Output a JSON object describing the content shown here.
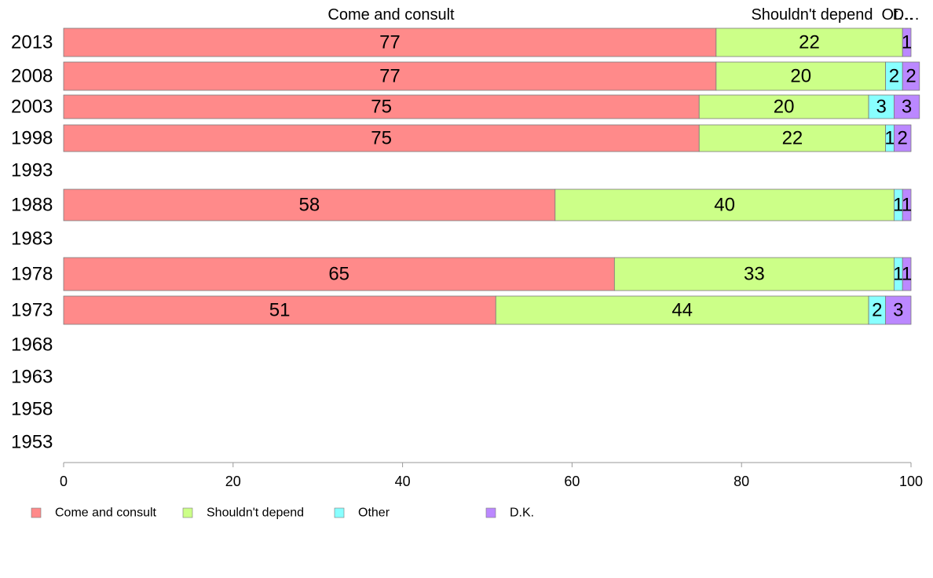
{
  "chart_data": {
    "type": "bar",
    "orientation": "horizontal",
    "stacked": true,
    "categories": [
      "2013",
      "2008",
      "2003",
      "1998",
      "1993",
      "1988",
      "1983",
      "1978",
      "1973",
      "1968",
      "1963",
      "1958",
      "1953"
    ],
    "series": [
      {
        "name": "Come and consult",
        "color": "#ff8a8a",
        "values": [
          77,
          77,
          75,
          75,
          null,
          58,
          null,
          65,
          51,
          null,
          null,
          null,
          null
        ]
      },
      {
        "name": "Shouldn't depend",
        "color": "#ccff88",
        "values": [
          22,
          20,
          20,
          22,
          null,
          40,
          null,
          33,
          44,
          null,
          null,
          null,
          null
        ]
      },
      {
        "name": "Other",
        "color": "#88ffff",
        "values": [
          0,
          2,
          3,
          1,
          null,
          1,
          null,
          1,
          2,
          null,
          null,
          null,
          null
        ]
      },
      {
        "name": "D.K.",
        "color": "#bb88ff",
        "values": [
          1,
          2,
          3,
          2,
          null,
          1,
          null,
          1,
          3,
          null,
          null,
          null,
          null
        ]
      }
    ],
    "top_labels": [
      "Come and consult",
      "Shouldn't depend",
      "Ot…",
      "D…"
    ],
    "xlim": [
      0,
      100
    ],
    "xticks": [
      "0",
      "20",
      "40",
      "60",
      "80",
      "100"
    ],
    "grid": false,
    "legend_position": "bottom-left"
  }
}
